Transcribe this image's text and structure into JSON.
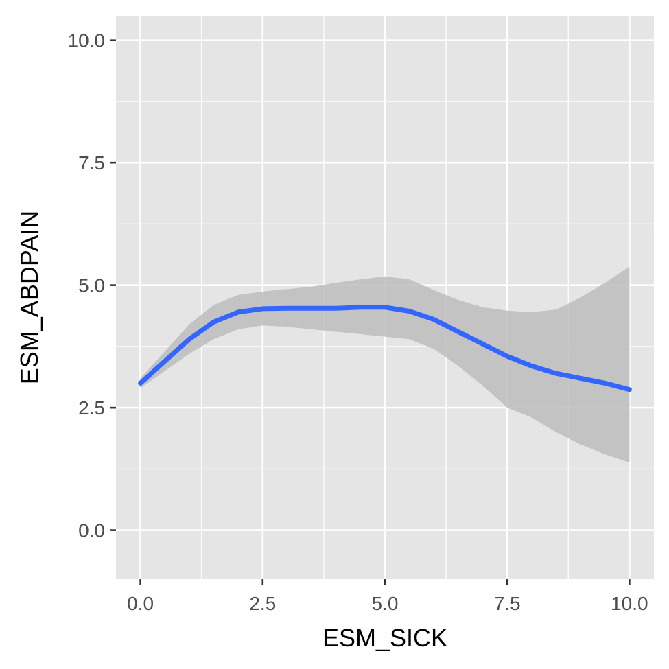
{
  "chart_data": {
    "type": "line",
    "title": "",
    "xlabel": "ESM_SICK",
    "ylabel": "ESM_ABDPAIN",
    "xlim": [
      -0.5,
      10.5
    ],
    "ylim": [
      -1.0,
      10.5
    ],
    "x_ticks": [
      0.0,
      2.5,
      5.0,
      7.5,
      10.0
    ],
    "x_tick_labels": [
      "0.0",
      "2.5",
      "5.0",
      "7.5",
      "10.0"
    ],
    "y_ticks": [
      0.0,
      2.5,
      5.0,
      7.5,
      10.0
    ],
    "y_tick_labels": [
      "0.0",
      "2.5",
      "5.0",
      "7.5",
      "10.0"
    ],
    "grid": true,
    "panel_background": "#e5e5e5",
    "grid_color": "#ffffff",
    "series": [
      {
        "type": "smooth",
        "color": "#3366ff",
        "ribbon_color": "#bdbdbd",
        "x": [
          0.0,
          0.5,
          1.0,
          1.5,
          2.0,
          2.5,
          3.0,
          3.5,
          4.0,
          4.5,
          5.0,
          5.5,
          6.0,
          6.5,
          7.0,
          7.5,
          8.0,
          8.5,
          9.0,
          9.5,
          10.0
        ],
        "y": [
          3.0,
          3.45,
          3.9,
          4.25,
          4.45,
          4.52,
          4.53,
          4.53,
          4.53,
          4.55,
          4.55,
          4.47,
          4.3,
          4.05,
          3.8,
          3.55,
          3.35,
          3.2,
          3.1,
          3.0,
          2.87
        ],
        "lower": [
          2.9,
          3.25,
          3.6,
          3.9,
          4.1,
          4.18,
          4.15,
          4.1,
          4.05,
          4.0,
          3.95,
          3.9,
          3.7,
          3.35,
          2.95,
          2.5,
          2.3,
          2.0,
          1.75,
          1.55,
          1.38
        ],
        "upper": [
          3.1,
          3.65,
          4.2,
          4.6,
          4.8,
          4.87,
          4.92,
          4.97,
          5.05,
          5.12,
          5.18,
          5.12,
          4.9,
          4.7,
          4.55,
          4.48,
          4.45,
          4.5,
          4.75,
          5.05,
          5.38
        ]
      }
    ]
  }
}
